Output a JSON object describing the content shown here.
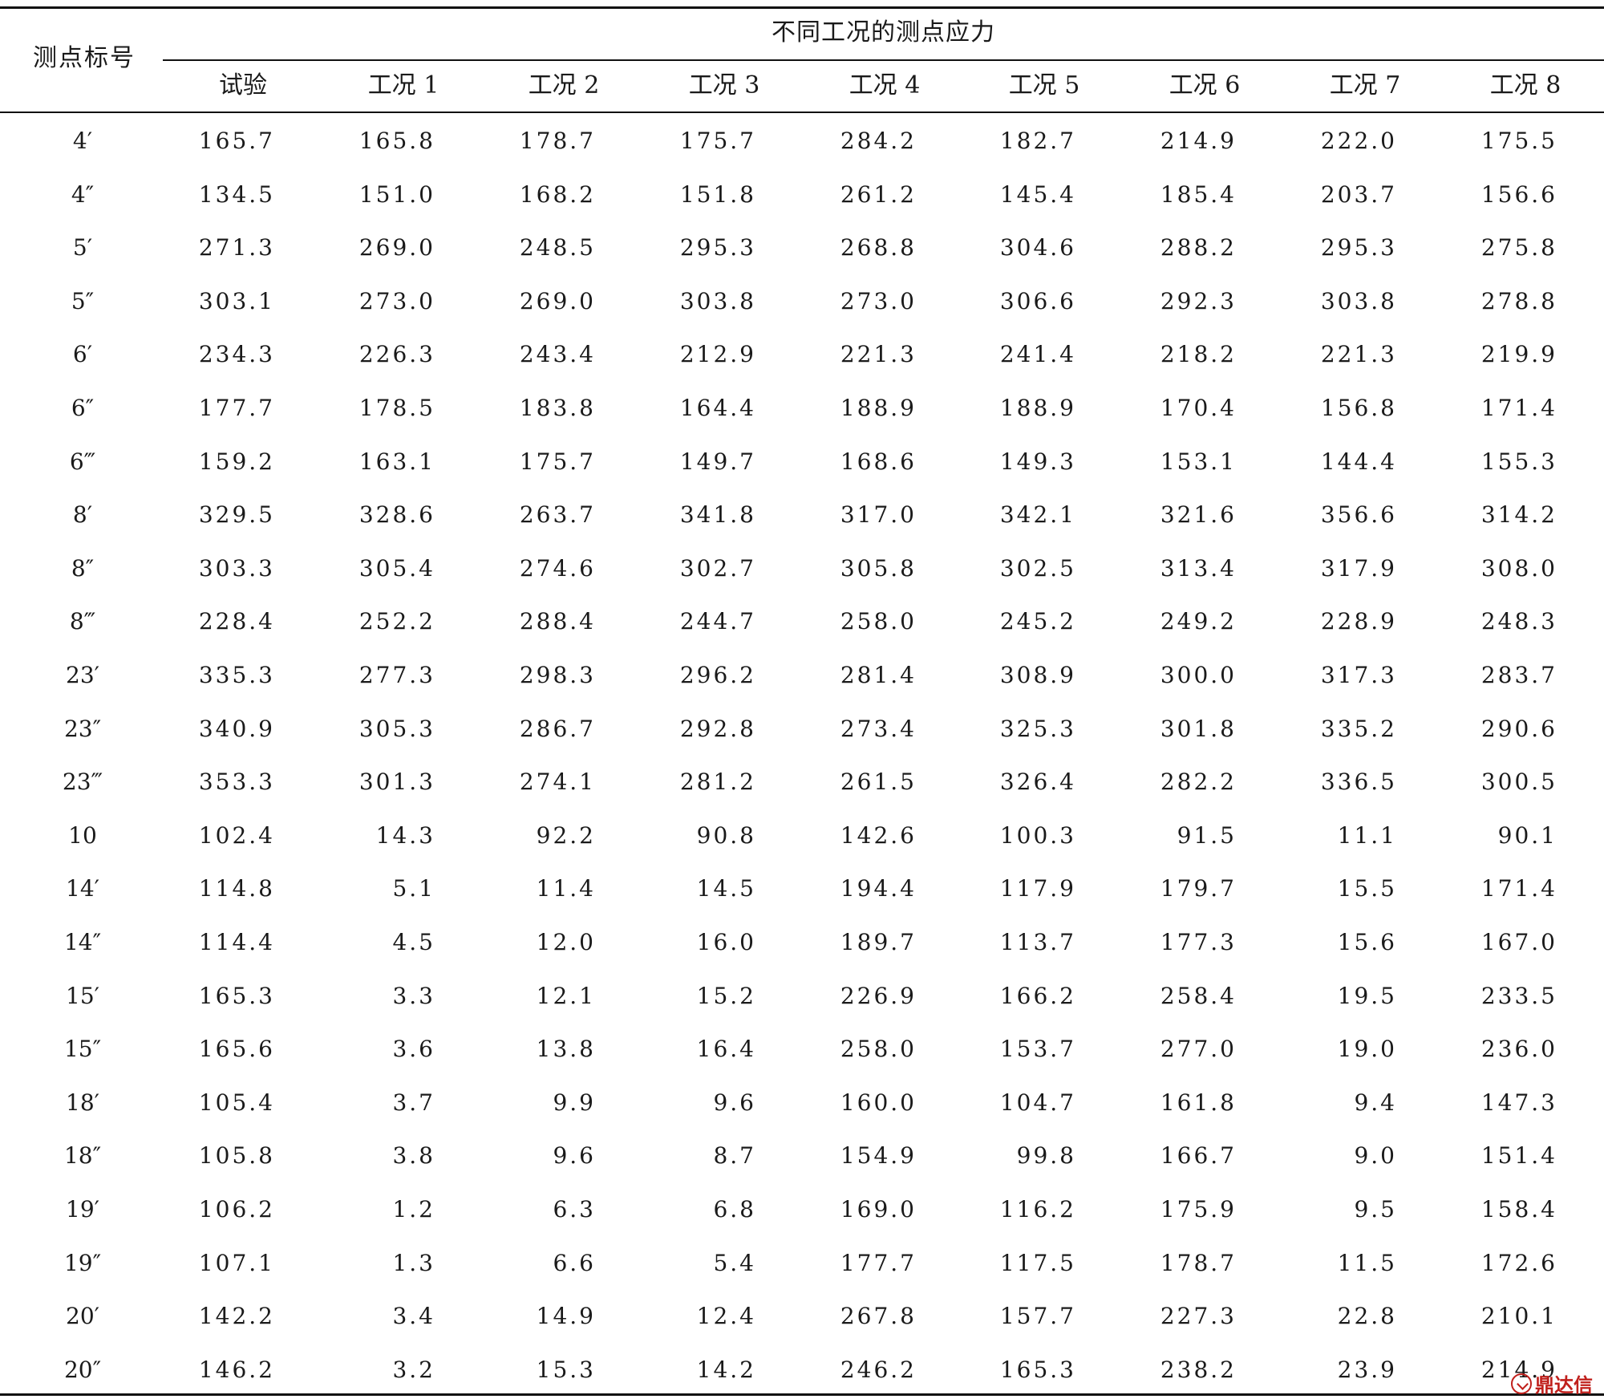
{
  "table": {
    "row_header": "测点标号",
    "group_header": "不同工况的测点应力",
    "columns": [
      "试验",
      "工况 1",
      "工况 2",
      "工况 3",
      "工况 4",
      "工况 5",
      "工况 6",
      "工况 7",
      "工况 8"
    ],
    "rows": [
      {
        "label": "4′",
        "values": [
          "165.7",
          "165.8",
          "178.7",
          "175.7",
          "284.2",
          "182.7",
          "214.9",
          "222.0",
          "175.5"
        ]
      },
      {
        "label": "4″",
        "values": [
          "134.5",
          "151.0",
          "168.2",
          "151.8",
          "261.2",
          "145.4",
          "185.4",
          "203.7",
          "156.6"
        ]
      },
      {
        "label": "5′",
        "values": [
          "271.3",
          "269.0",
          "248.5",
          "295.3",
          "268.8",
          "304.6",
          "288.2",
          "295.3",
          "275.8"
        ]
      },
      {
        "label": "5″",
        "values": [
          "303.1",
          "273.0",
          "269.0",
          "303.8",
          "273.0",
          "306.6",
          "292.3",
          "303.8",
          "278.8"
        ]
      },
      {
        "label": "6′",
        "values": [
          "234.3",
          "226.3",
          "243.4",
          "212.9",
          "221.3",
          "241.4",
          "218.2",
          "221.3",
          "219.9"
        ]
      },
      {
        "label": "6″",
        "values": [
          "177.7",
          "178.5",
          "183.8",
          "164.4",
          "188.9",
          "188.9",
          "170.4",
          "156.8",
          "171.4"
        ]
      },
      {
        "label": "6‴",
        "values": [
          "159.2",
          "163.1",
          "175.7",
          "149.7",
          "168.6",
          "149.3",
          "153.1",
          "144.4",
          "155.3"
        ]
      },
      {
        "label": "8′",
        "values": [
          "329.5",
          "328.6",
          "263.7",
          "341.8",
          "317.0",
          "342.1",
          "321.6",
          "356.6",
          "314.2"
        ]
      },
      {
        "label": "8″",
        "values": [
          "303.3",
          "305.4",
          "274.6",
          "302.7",
          "305.8",
          "302.5",
          "313.4",
          "317.9",
          "308.0"
        ]
      },
      {
        "label": "8‴",
        "values": [
          "228.4",
          "252.2",
          "288.4",
          "244.7",
          "258.0",
          "245.2",
          "249.2",
          "228.9",
          "248.3"
        ]
      },
      {
        "label": "23′",
        "values": [
          "335.3",
          "277.3",
          "298.3",
          "296.2",
          "281.4",
          "308.9",
          "300.0",
          "317.3",
          "283.7"
        ]
      },
      {
        "label": "23″",
        "values": [
          "340.9",
          "305.3",
          "286.7",
          "292.8",
          "273.4",
          "325.3",
          "301.8",
          "335.2",
          "290.6"
        ]
      },
      {
        "label": "23‴",
        "values": [
          "353.3",
          "301.3",
          "274.1",
          "281.2",
          "261.5",
          "326.4",
          "282.2",
          "336.5",
          "300.5"
        ]
      },
      {
        "label": "10",
        "values": [
          "102.4",
          "14.3",
          "92.2",
          "90.8",
          "142.6",
          "100.3",
          "91.5",
          "11.1",
          "90.1"
        ]
      },
      {
        "label": "14′",
        "values": [
          "114.8",
          "5.1",
          "11.4",
          "14.5",
          "194.4",
          "117.9",
          "179.7",
          "15.5",
          "171.4"
        ]
      },
      {
        "label": "14″",
        "values": [
          "114.4",
          "4.5",
          "12.0",
          "16.0",
          "189.7",
          "113.7",
          "177.3",
          "15.6",
          "167.0"
        ]
      },
      {
        "label": "15′",
        "values": [
          "165.3",
          "3.3",
          "12.1",
          "15.2",
          "226.9",
          "166.2",
          "258.4",
          "19.5",
          "233.5"
        ]
      },
      {
        "label": "15″",
        "values": [
          "165.6",
          "3.6",
          "13.8",
          "16.4",
          "258.0",
          "153.7",
          "277.0",
          "19.0",
          "236.0"
        ]
      },
      {
        "label": "18′",
        "values": [
          "105.4",
          "3.7",
          "9.9",
          "9.6",
          "160.0",
          "104.7",
          "161.8",
          "9.4",
          "147.3"
        ]
      },
      {
        "label": "18″",
        "values": [
          "105.8",
          "3.8",
          "9.6",
          "8.7",
          "154.9",
          "99.8",
          "166.7",
          "9.0",
          "151.4"
        ]
      },
      {
        "label": "19′",
        "values": [
          "106.2",
          "1.2",
          "6.3",
          "6.8",
          "169.0",
          "116.2",
          "175.9",
          "9.5",
          "158.4"
        ]
      },
      {
        "label": "19″",
        "values": [
          "107.1",
          "1.3",
          "6.6",
          "5.4",
          "177.7",
          "117.5",
          "178.7",
          "11.5",
          "172.6"
        ]
      },
      {
        "label": "20′",
        "values": [
          "142.2",
          "3.4",
          "14.9",
          "12.4",
          "267.8",
          "157.7",
          "227.3",
          "22.8",
          "210.1"
        ]
      },
      {
        "label": "20″",
        "values": [
          "146.2",
          "3.2",
          "15.3",
          "14.2",
          "246.2",
          "165.3",
          "238.2",
          "23.9",
          "214.9"
        ]
      }
    ]
  },
  "watermark": {
    "text": "鼎达信",
    "icon": "stamp-logo-icon",
    "color": "#c0201c"
  }
}
